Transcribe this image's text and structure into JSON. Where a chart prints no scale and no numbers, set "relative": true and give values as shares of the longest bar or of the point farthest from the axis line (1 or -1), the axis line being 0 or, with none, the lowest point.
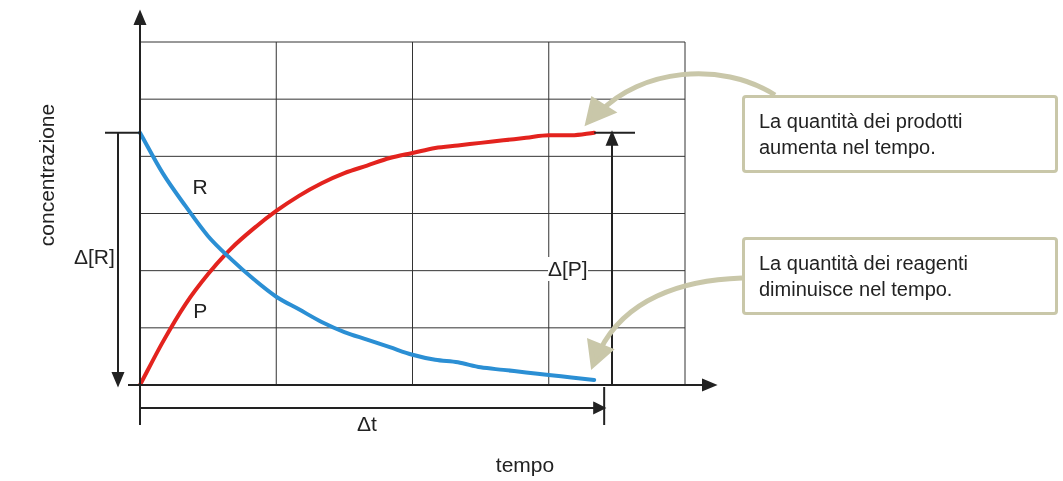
{
  "chart_data": {
    "type": "line",
    "relative": true,
    "grid": true,
    "legend": false,
    "marker": "none",
    "line_style": "solid",
    "xlabel": "tempo",
    "ylabel": "concentrazione",
    "categories": [
      null,
      null,
      null,
      null,
      null,
      null,
      null,
      null,
      null,
      null,
      null,
      null,
      null,
      null,
      null,
      null,
      null,
      null,
      null,
      null,
      null,
      null,
      null,
      null,
      null
    ],
    "series": [
      {
        "name": "R",
        "color": "#2b8fd4",
        "values": [
          1,
          0.84,
          0.71,
          0.59,
          0.5,
          0.42,
          0.35,
          0.3,
          0.25,
          0.21,
          0.18,
          0.15,
          0.12,
          0.1,
          0.09,
          0.07,
          0.06,
          0.05,
          0.04,
          0.03,
          0.02,
          null,
          null,
          null,
          null
        ]
      },
      {
        "name": "P",
        "color": "#e3231e",
        "values": [
          0,
          0.17,
          0.32,
          0.44,
          0.54,
          0.62,
          0.69,
          0.75,
          0.8,
          0.84,
          0.87,
          0.9,
          0.92,
          0.94,
          0.95,
          0.96,
          0.97,
          0.98,
          0.99,
          0.99,
          1,
          null,
          null,
          null,
          null
        ]
      }
    ],
    "annotations": [
      "Δ[R]",
      "Δ[P]",
      "Δt",
      "La quantità dei prodotti aumenta nel tempo.",
      "La quantità dei reagenti diminuisce nel tempo."
    ]
  }
}
